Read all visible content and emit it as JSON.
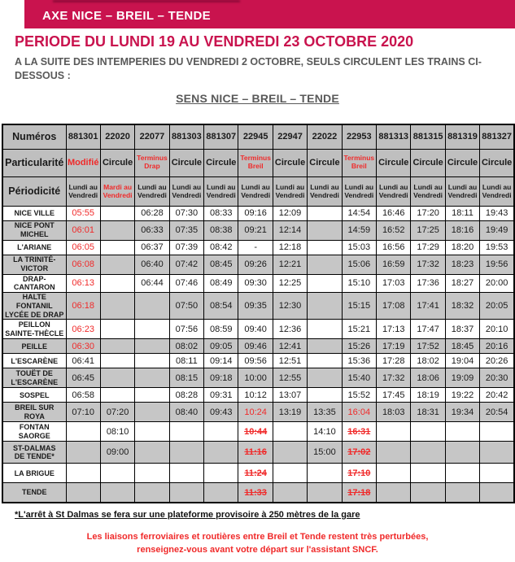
{
  "colors": {
    "brand": "#C9134E",
    "alert_red": "#F02A2A",
    "header_gray": "#BFBFBF",
    "row_alt_gray": "#C6C6C6",
    "text_gray": "#595959"
  },
  "header": {
    "banner_title": "AXE NICE – BREIL – TENDE",
    "period_title": "PERIODE DU LUNDI 19 AU VENDREDI 23 OCTOBRE 2020",
    "notice": "A LA SUITE DES INTEMPERIES DU VENDREDI 2 OCTOBRE, SEULS CIRCULENT LES TRAINS CI-DESSOUS :",
    "direction_title": "SENS NICE – BREIL – TENDE"
  },
  "table": {
    "row_labels": {
      "numbers": "Numéros",
      "particularity": "Particularité",
      "periodicity": "Périodicité"
    },
    "trains": [
      {
        "number": "881301",
        "particularity": "Modifié",
        "particularity_red": true,
        "periodicity": "Lundi au Vendredi",
        "periodicity_red": false
      },
      {
        "number": "22020",
        "particularity": "Circule",
        "particularity_red": false,
        "periodicity": "Mardi au Vendredi",
        "periodicity_red": true
      },
      {
        "number": "22077",
        "particularity": "Terminus Drap",
        "particularity_red": true,
        "periodicity": "Lundi au Vendredi",
        "periodicity_red": false
      },
      {
        "number": "881303",
        "particularity": "Circule",
        "particularity_red": false,
        "periodicity": "Lundi au Vendredi",
        "periodicity_red": false
      },
      {
        "number": "881307",
        "particularity": "Circule",
        "particularity_red": false,
        "periodicity": "Lundi au Vendredi",
        "periodicity_red": false
      },
      {
        "number": "22945",
        "particularity": "Terminus Breil",
        "particularity_red": true,
        "periodicity": "Lundi au Vendredi",
        "periodicity_red": false
      },
      {
        "number": "22947",
        "particularity": "Circule",
        "particularity_red": false,
        "periodicity": "Lundi au Vendredi",
        "periodicity_red": false
      },
      {
        "number": "22022",
        "particularity": "Circule",
        "particularity_red": false,
        "periodicity": "Lundi au Vendredi",
        "periodicity_red": false
      },
      {
        "number": "22953",
        "particularity": "Terminus Breil",
        "particularity_red": true,
        "periodicity": "Lundi au Vendredi",
        "periodicity_red": false
      },
      {
        "number": "881313",
        "particularity": "Circule",
        "particularity_red": false,
        "periodicity": "Lundi au Vendredi",
        "periodicity_red": false
      },
      {
        "number": "881315",
        "particularity": "Circule",
        "particularity_red": false,
        "periodicity": "Lundi au Vendredi",
        "periodicity_red": false
      },
      {
        "number": "881319",
        "particularity": "Circule",
        "particularity_red": false,
        "periodicity": "Lundi au Vendredi",
        "periodicity_red": false
      },
      {
        "number": "881327",
        "particularity": "Circule",
        "particularity_red": false,
        "periodicity": "Lundi au Vendredi",
        "periodicity_red": false
      }
    ],
    "stations": [
      {
        "name": "NICE VILLE",
        "tall": false,
        "times": [
          {
            "v": "05:55",
            "style": "red"
          },
          "",
          "06:28",
          "07:30",
          "08:33",
          "09:16",
          "12:09",
          "",
          "14:54",
          "16:46",
          "17:20",
          "18:11",
          "19:43"
        ]
      },
      {
        "name": "NICE PONT\nMICHEL",
        "tall": true,
        "times": [
          {
            "v": "06:01",
            "style": "red"
          },
          "",
          "06:33",
          "07:35",
          "08:38",
          "09:21",
          "12:14",
          "",
          "14:59",
          "16:52",
          "17:25",
          "18:16",
          "19:49"
        ]
      },
      {
        "name": "L'ARIANE",
        "tall": false,
        "times": [
          {
            "v": "06:05",
            "style": "red"
          },
          "",
          "06:37",
          "07:39",
          "08:42",
          "-",
          "12:18",
          "",
          "15:03",
          "16:56",
          "17:29",
          "18:20",
          "19:53"
        ]
      },
      {
        "name": "LA TRINITÉ-\nVICTOR",
        "tall": true,
        "times": [
          {
            "v": "06:08",
            "style": "red"
          },
          "",
          "06:40",
          "07:42",
          "08:45",
          "09:26",
          "12:21",
          "",
          "15:06",
          "16:59",
          "17:32",
          "18:23",
          "19:56"
        ]
      },
      {
        "name": "DRAP-CANTARON",
        "tall": false,
        "times": [
          {
            "v": "06:13",
            "style": "red"
          },
          "",
          "06:44",
          "07:46",
          "08:49",
          "09:30",
          "12:25",
          "",
          "15:10",
          "17:03",
          "17:36",
          "18:27",
          "20:00"
        ]
      },
      {
        "name": "HALTE FONTANIL\nLYCÉE DE DRAP",
        "tall": true,
        "times": [
          {
            "v": "06:18",
            "style": "red"
          },
          "",
          "",
          "07:50",
          "08:54",
          "09:35",
          "12:30",
          "",
          "15:15",
          "17:08",
          "17:41",
          "18:32",
          "20:05"
        ]
      },
      {
        "name": "PEILLON\nSAINTE-THÈCLE",
        "tall": true,
        "times": [
          {
            "v": "06:23",
            "style": "red"
          },
          "",
          "",
          "07:56",
          "08:59",
          "09:40",
          "12:36",
          "",
          "15:21",
          "17:13",
          "17:47",
          "18:37",
          "20:10"
        ]
      },
      {
        "name": "PEILLE",
        "tall": false,
        "times": [
          {
            "v": "06:30",
            "style": "red"
          },
          "",
          "",
          "08:02",
          "09:05",
          "09:46",
          "12:41",
          "",
          "15:26",
          "17:19",
          "17:52",
          "18:45",
          "20:16"
        ]
      },
      {
        "name": "L'ESCARÈNE",
        "tall": false,
        "times": [
          "06:41",
          "",
          "",
          "08:11",
          "09:14",
          "09:56",
          "12:51",
          "",
          "15:36",
          "17:28",
          "18:02",
          "19:04",
          "20:26"
        ]
      },
      {
        "name": "TOUËT DE\nL'ESCARÈNE",
        "tall": true,
        "times": [
          "06:45",
          "",
          "",
          "08:15",
          "09:18",
          "10:00",
          "12:55",
          "",
          "15:40",
          "17:32",
          "18:06",
          "19:09",
          "20:30"
        ]
      },
      {
        "name": "SOSPEL",
        "tall": false,
        "times": [
          "06:58",
          "",
          "",
          "08:28",
          "09:31",
          "10:12",
          "13:07",
          "",
          "15:52",
          "17:45",
          "18:19",
          "19:22",
          "20:42"
        ]
      },
      {
        "name": "BREIL SUR ROYA",
        "tall": false,
        "times": [
          "07:10",
          "07:20",
          "",
          "08:40",
          "09:43",
          {
            "v": "10:24",
            "style": "red"
          },
          "13:19",
          "13:35",
          {
            "v": "16:04",
            "style": "red"
          },
          "18:03",
          "18:31",
          "19:34",
          "20:54"
        ]
      },
      {
        "name": "FONTAN SAORGE",
        "tall": false,
        "times": [
          "",
          "08:10",
          "",
          "",
          "",
          {
            "v": "10:44",
            "style": "strike"
          },
          "",
          "14:10",
          {
            "v": "16:31",
            "style": "strike"
          },
          "",
          "",
          "",
          ""
        ]
      },
      {
        "name": "ST-DALMAS\nDE TENDE*",
        "tall": true,
        "times": [
          "",
          "09:00",
          "",
          "",
          "",
          {
            "v": "11:16",
            "style": "strike"
          },
          "",
          "15:00",
          {
            "v": "17:02",
            "style": "strike"
          },
          "",
          "",
          "",
          ""
        ]
      },
      {
        "name": "LA BRIGUE",
        "tall": false,
        "times": [
          "",
          "",
          "",
          "",
          "",
          {
            "v": "11:24",
            "style": "strike"
          },
          "",
          "",
          {
            "v": "17:10",
            "style": "strike"
          },
          "",
          "",
          "",
          ""
        ]
      },
      {
        "name": "TENDE",
        "tall": false,
        "times": [
          "",
          "",
          "",
          "",
          "",
          {
            "v": "11:33",
            "style": "strike"
          },
          "",
          "",
          {
            "v": "17:18",
            "style": "strike"
          },
          "",
          "",
          "",
          ""
        ]
      }
    ]
  },
  "footer": {
    "footnote": "*L'arrêt à St Dalmas se fera sur une plateforme provisoire à 250 mètres de la gare",
    "warning_lines": [
      "Les liaisons ferroviaires et routières entre Breil et Tende restent très perturbées,",
      "renseignez-vous avant votre départ sur l'assistant SNCF."
    ]
  }
}
